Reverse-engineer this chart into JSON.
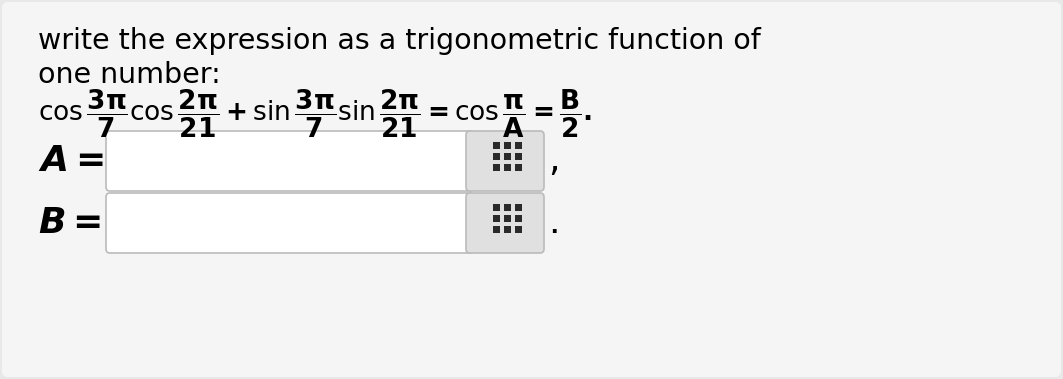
{
  "title_line1": "write the expression as a trigonometric function of",
  "title_line2": "one number:",
  "bg_color": "#e8e8e8",
  "inner_bg": "#f5f5f5",
  "box_fill": "#ffffff",
  "grid_fill": "#e0e0e0",
  "grid_dot": "#2a2a2a",
  "text_color": "#000000",
  "figsize": [
    10.63,
    3.79
  ],
  "dpi": 100,
  "math_expr": "$\\mathbf{\\cos\\dfrac{3\\pi}{7}\\cos\\dfrac{2\\pi}{21} + \\sin\\dfrac{3\\pi}{7}\\sin\\dfrac{2\\pi}{21} = \\cos\\dfrac{\\pi}{A} = \\dfrac{B}{2}.}$",
  "label_A": "$\\boldsymbol{A =}$",
  "label_B": "$\\boldsymbol{B =}$"
}
